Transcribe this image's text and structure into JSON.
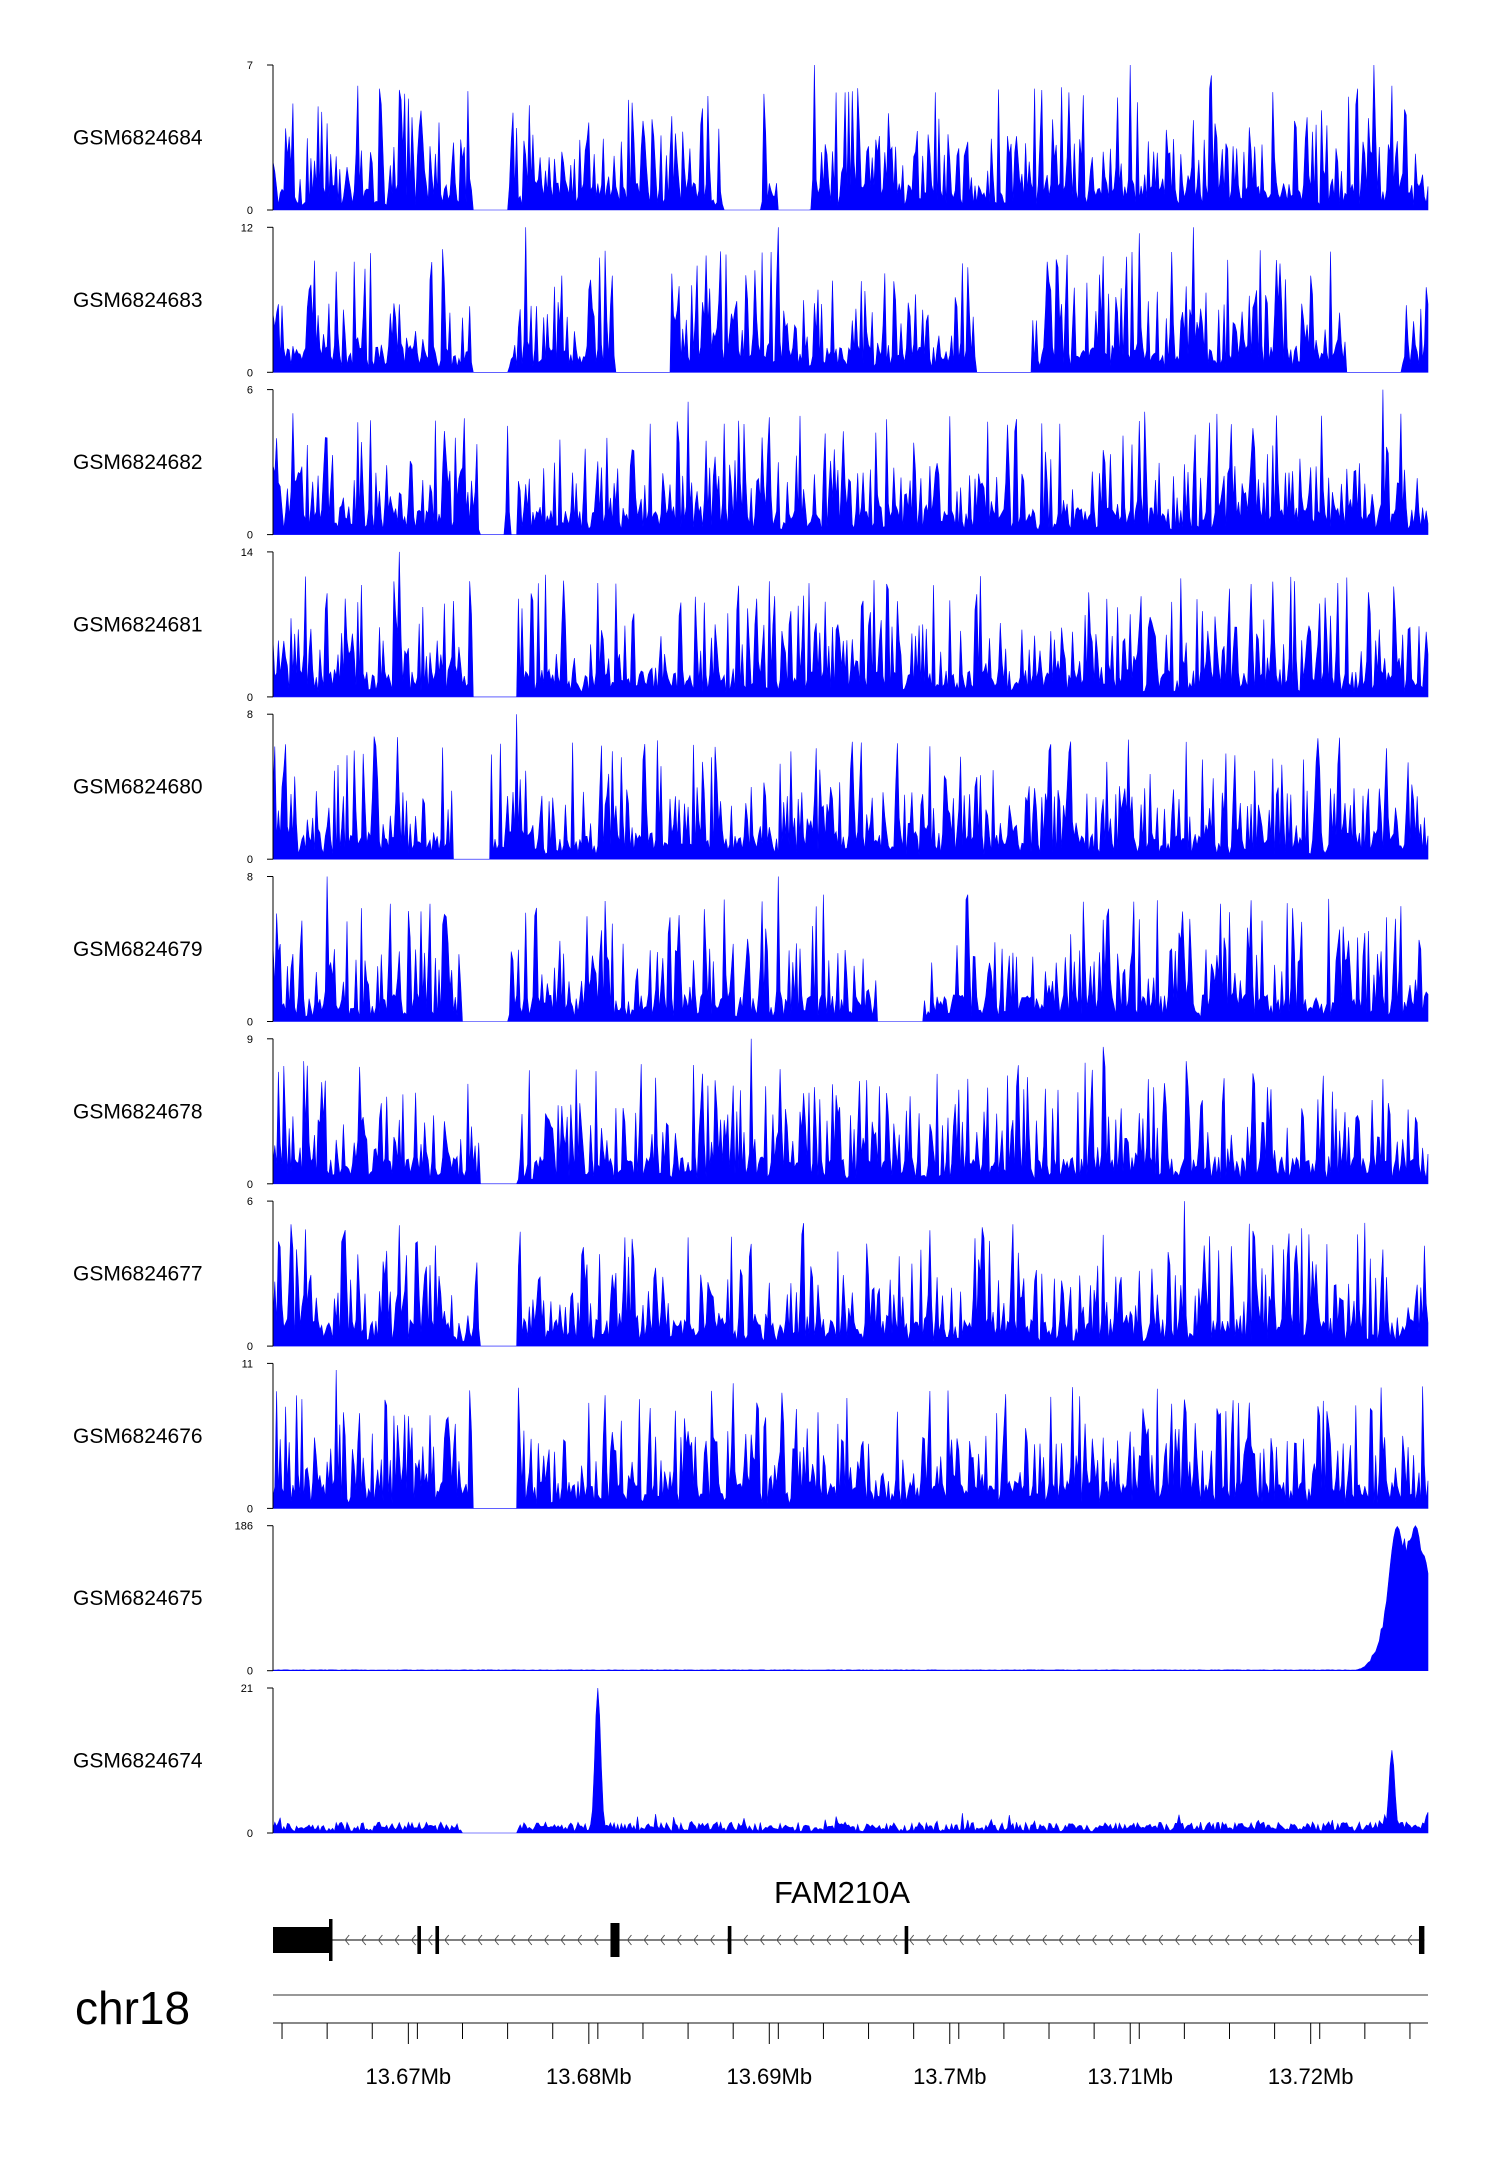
{
  "chart_data": {
    "type": "area",
    "chromosome": "chr18",
    "gene": {
      "name": "FAM210A",
      "strand": "-"
    },
    "x_unit": "Mb",
    "xlim": [
      13.6625,
      13.7265
    ],
    "x_ticks": [
      13.67,
      13.68,
      13.69,
      13.7,
      13.71,
      13.72
    ],
    "x_tick_labels": [
      "13.67Mb",
      "13.68Mb",
      "13.69Mb",
      "13.7Mb",
      "13.71Mb",
      "13.72Mb"
    ],
    "fill_color": "#0000ff",
    "gene_color": "#000000",
    "gene_model": {
      "span": [
        13.6625,
        13.7263
      ],
      "exons": [
        [
          13.6625,
          13.6657
        ],
        [
          13.6705,
          13.6707
        ],
        [
          13.6715,
          13.6717
        ],
        [
          13.6812,
          13.6817
        ],
        [
          13.6877,
          13.6879
        ],
        [
          13.6975,
          13.6977
        ],
        [
          13.726,
          13.7263
        ]
      ]
    },
    "series": [
      {
        "name": "GSM6824684",
        "ymax": 7,
        "gaps": [
          [
            13.6735,
            13.6755
          ],
          [
            13.6875,
            13.6895
          ],
          [
            13.6905,
            13.6925
          ]
        ],
        "peaks": [
          [
            13.665,
            5
          ],
          [
            13.6672,
            6
          ],
          [
            13.6695,
            5.8
          ],
          [
            13.6925,
            7
          ],
          [
            13.71,
            7
          ],
          [
            13.7145,
            6.5
          ],
          [
            13.7235,
            7.2
          ],
          [
            13.7245,
            6
          ]
        ]
      },
      {
        "name": "GSM6824683",
        "ymax": 12,
        "gaps": [
          [
            13.6735,
            13.6755
          ],
          [
            13.6815,
            13.6845
          ],
          [
            13.7015,
            13.7045
          ],
          [
            13.722,
            13.725
          ]
        ],
        "peaks": [
          [
            13.6765,
            12
          ],
          [
            13.6785,
            8
          ],
          [
            13.6905,
            12
          ],
          [
            13.7055,
            7.5
          ],
          [
            13.7105,
            11.5
          ],
          [
            13.7135,
            12
          ],
          [
            13.72,
            8
          ]
        ]
      },
      {
        "name": "GSM6824682",
        "ymax": 6,
        "gaps": [
          [
            13.674,
            13.676
          ]
        ],
        "peaks": [
          [
            13.6655,
            4
          ],
          [
            13.6755,
            4.5
          ],
          [
            13.681,
            4
          ],
          [
            13.6855,
            5.5
          ],
          [
            13.698,
            3.8
          ],
          [
            13.7085,
            3.5
          ],
          [
            13.724,
            6
          ],
          [
            13.725,
            5
          ]
        ]
      },
      {
        "name": "GSM6824681",
        "ymax": 14,
        "gaps": [
          [
            13.6735,
            13.676
          ]
        ],
        "peaks": [
          [
            13.6655,
            10
          ],
          [
            13.6695,
            14
          ],
          [
            13.6805,
            11
          ],
          [
            13.687,
            7
          ],
          [
            13.6985,
            7
          ],
          [
            13.704,
            6.5
          ],
          [
            13.712,
            6
          ],
          [
            13.7215,
            11
          ]
        ]
      },
      {
        "name": "GSM6824680",
        "ymax": 8,
        "gaps": [
          [
            13.6725,
            13.6745
          ]
        ],
        "peaks": [
          [
            13.667,
            6
          ],
          [
            13.676,
            8
          ],
          [
            13.683,
            5.5
          ],
          [
            13.6945,
            5
          ],
          [
            13.7055,
            6
          ],
          [
            13.714,
            5.5
          ],
          [
            13.7205,
            5
          ]
        ]
      },
      {
        "name": "GSM6824679",
        "ymax": 8,
        "gaps": [
          [
            13.673,
            13.6755
          ],
          [
            13.696,
            13.6985
          ]
        ],
        "peaks": [
          [
            13.6655,
            8
          ],
          [
            13.669,
            6.5
          ],
          [
            13.6765,
            6
          ],
          [
            13.6905,
            8
          ],
          [
            13.693,
            7
          ],
          [
            13.701,
            7
          ],
          [
            13.715,
            6.5
          ],
          [
            13.726,
            4.5
          ]
        ]
      },
      {
        "name": "GSM6824678",
        "ymax": 9,
        "gaps": [
          [
            13.674,
            13.676
          ]
        ],
        "peaks": [
          [
            13.6685,
            5
          ],
          [
            13.6795,
            5
          ],
          [
            13.689,
            9
          ],
          [
            13.6925,
            6
          ],
          [
            13.7085,
            8.5
          ],
          [
            13.711,
            6.5
          ],
          [
            13.724,
            6.5
          ]
        ]
      },
      {
        "name": "GSM6824677",
        "ymax": 6,
        "gaps": [
          [
            13.674,
            13.676
          ]
        ],
        "peaks": [
          [
            13.6665,
            4.8
          ],
          [
            13.6695,
            5
          ],
          [
            13.682,
            4.5
          ],
          [
            13.6855,
            4.5
          ],
          [
            13.713,
            6
          ],
          [
            13.7185,
            4
          ]
        ]
      },
      {
        "name": "GSM6824676",
        "ymax": 11,
        "gaps": [
          [
            13.6735,
            13.676
          ]
        ],
        "peaks": [
          [
            13.666,
            10.5
          ],
          [
            13.67,
            7
          ],
          [
            13.68,
            8
          ],
          [
            13.688,
            9.5
          ],
          [
            13.702,
            5.5
          ],
          [
            13.716,
            8
          ],
          [
            13.7205,
            7
          ]
        ]
      },
      {
        "name": "GSM6824675",
        "ymax": 186,
        "gaps": [],
        "peaks": [
          [
            13.7248,
            185
          ],
          [
            13.7258,
            186
          ],
          [
            13.7262,
            150
          ]
        ]
      },
      {
        "name": "GSM6824674",
        "ymax": 21,
        "gaps": [
          [
            13.673,
            13.676
          ]
        ],
        "peaks": [
          [
            13.6805,
            21
          ],
          [
            13.7245,
            12
          ],
          [
            13.7265,
            3
          ]
        ]
      }
    ]
  }
}
